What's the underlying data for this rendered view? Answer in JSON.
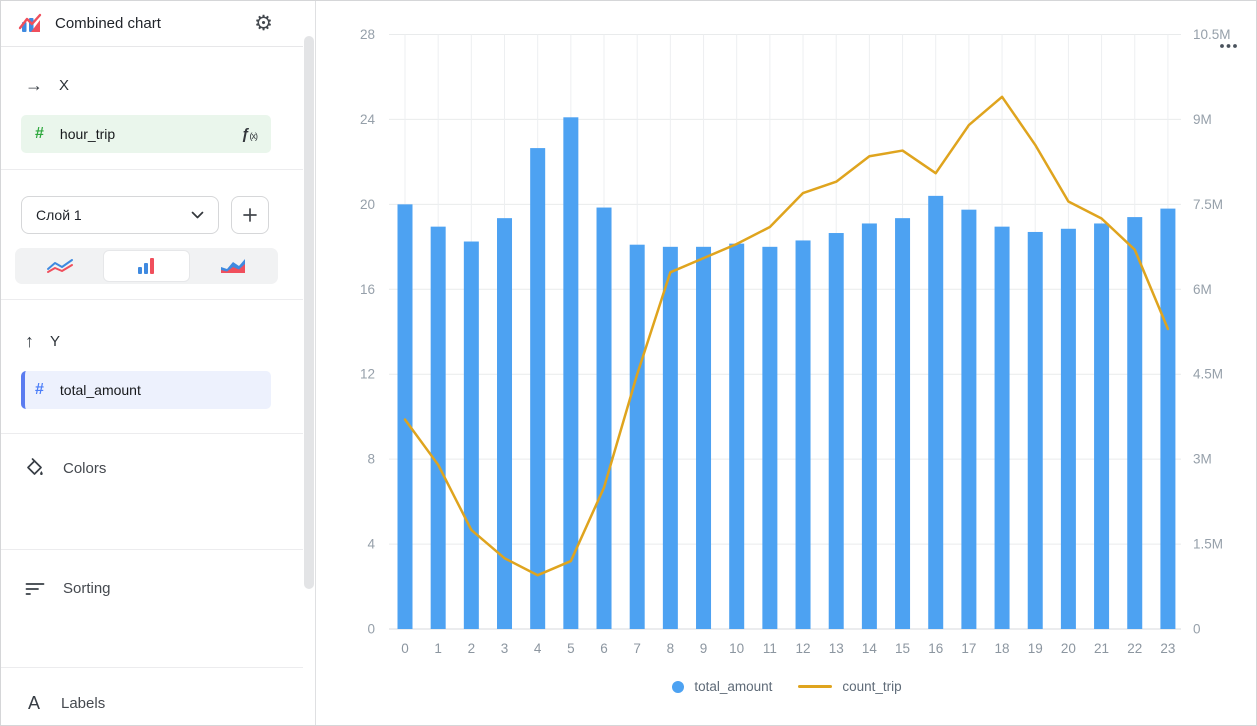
{
  "window": {
    "title": "Combined chart"
  },
  "sidebar": {
    "gear_icon": "⚙",
    "x_section": {
      "arrow_icon": "→",
      "label": "X",
      "field": {
        "hash": "#",
        "name": "hour_trip",
        "fx": "ƒ",
        "fx_args": "(x)"
      }
    },
    "layer_section": {
      "selected_layer": "Слой 1"
    },
    "y_section": {
      "arrow_icon": "↑",
      "label": "Y",
      "field": {
        "hash": "#",
        "name": "total_amount"
      }
    },
    "colors_label": "Colors",
    "sorting_label": "Sorting",
    "labels_label": "Labels",
    "labels_icon": "A"
  },
  "legend": {
    "items": [
      {
        "label": "total_amount"
      },
      {
        "label": "count_trip"
      }
    ]
  },
  "chart_data": {
    "type": "combined",
    "categories": [
      "0",
      "1",
      "2",
      "3",
      "4",
      "5",
      "6",
      "7",
      "8",
      "9",
      "10",
      "11",
      "12",
      "13",
      "14",
      "15",
      "16",
      "17",
      "18",
      "19",
      "20",
      "21",
      "22",
      "23"
    ],
    "series": [
      {
        "name": "total_amount",
        "type": "bar",
        "axis": "left",
        "color": "#4da2f2",
        "values": [
          20.0,
          18.95,
          18.25,
          19.35,
          22.65,
          24.1,
          19.85,
          18.1,
          18.0,
          18.0,
          18.15,
          18.0,
          18.3,
          18.65,
          19.1,
          19.35,
          20.4,
          19.75,
          18.95,
          18.7,
          18.85,
          19.1,
          19.4,
          19.8
        ]
      },
      {
        "name": "count_trip",
        "type": "line",
        "axis": "right",
        "color": "#dfa41e",
        "values": [
          3700000,
          2900000,
          1750000,
          1250000,
          950000,
          1200000,
          2500000,
          4500000,
          6300000,
          6550000,
          6800000,
          7100000,
          7700000,
          7900000,
          8350000,
          8450000,
          8050000,
          8900000,
          9400000,
          8550000,
          7550000,
          7250000,
          6700000,
          5300000
        ]
      }
    ],
    "x_axis": {
      "field": "hour_trip"
    },
    "left_axis": {
      "min": 0,
      "max": 28,
      "tick_labels": [
        "0",
        "4",
        "8",
        "12",
        "16",
        "20",
        "24",
        "28"
      ]
    },
    "right_axis": {
      "min": 0,
      "max": 10500000,
      "tick_labels": [
        "0",
        "1.5M",
        "3M",
        "4.5M",
        "6M",
        "7.5M",
        "9M",
        "10.5M"
      ]
    },
    "grid": true,
    "legend_position": "bottom"
  }
}
